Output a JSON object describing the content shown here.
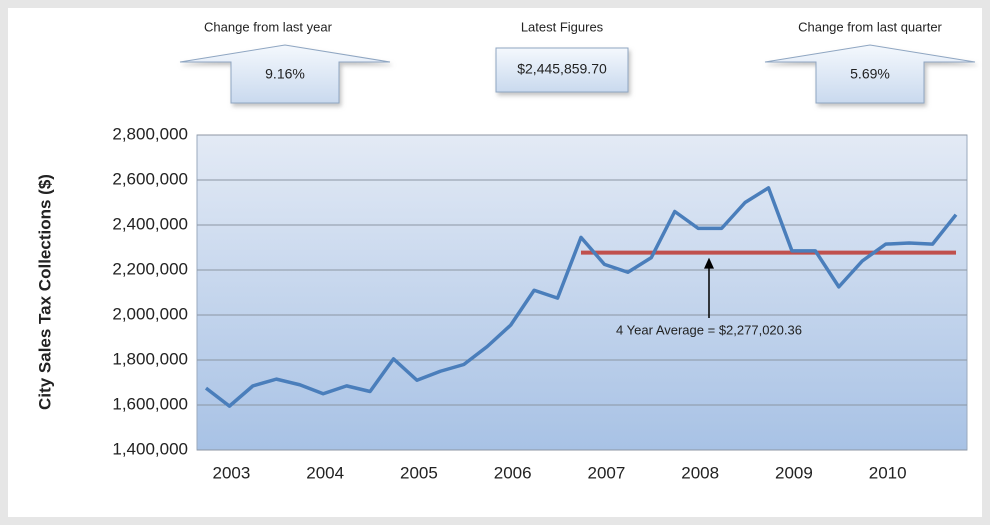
{
  "chart_data": {
    "type": "line",
    "ylabel": "City Sales Tax Collections ($)",
    "kpis": [
      {
        "title": "Change from last year",
        "value_label": "9.16%",
        "shape": "up-arrow"
      },
      {
        "title": "Latest Figures",
        "value_label": "$2,445,859.70",
        "shape": "box"
      },
      {
        "title": "Change from last quarter",
        "value_label": "5.69%",
        "shape": "up-arrow"
      }
    ],
    "categories": [
      null,
      "2003",
      null,
      null,
      null,
      "2004",
      null,
      null,
      null,
      "2005",
      null,
      null,
      null,
      "2006",
      null,
      null,
      null,
      "2007",
      null,
      null,
      null,
      "2008",
      null,
      null,
      null,
      "2009",
      null,
      null,
      null,
      "2010",
      null,
      null,
      null
    ],
    "series": [
      {
        "color": "#4a7ebb",
        "values": [
          1675000,
          1595000,
          1685000,
          1715000,
          1690000,
          1650000,
          1685000,
          1660000,
          1805000,
          1710000,
          1750000,
          1780000,
          1860000,
          1955000,
          2110000,
          2075000,
          2345000,
          2225000,
          2190000,
          2255000,
          2460000,
          2385000,
          2385000,
          2500000,
          2565000,
          2285000,
          2285000,
          2125000,
          2240000,
          2315000,
          2320000,
          2315000,
          2445859.7
        ]
      },
      {
        "color": "#c0504d",
        "values": [
          null,
          null,
          null,
          null,
          null,
          null,
          null,
          null,
          null,
          null,
          null,
          null,
          null,
          null,
          null,
          null,
          2277020.36,
          2277020.36,
          2277020.36,
          2277020.36,
          2277020.36,
          2277020.36,
          2277020.36,
          2277020.36,
          2277020.36,
          2277020.36,
          2277020.36,
          2277020.36,
          2277020.36,
          2277020.36,
          2277020.36,
          2277020.36,
          2277020.36
        ]
      }
    ],
    "annotation": "4 Year Average = $2,277,020.36",
    "ylim": [
      1400000,
      2800000
    ],
    "yticks": [
      {
        "value": 1400000,
        "label": "1,400,000"
      },
      {
        "value": 1600000,
        "label": "1,600,000"
      },
      {
        "value": 1800000,
        "label": "1,800,000"
      },
      {
        "value": 2000000,
        "label": "2,000,000"
      },
      {
        "value": 2200000,
        "label": "2,200,000"
      },
      {
        "value": 2400000,
        "label": "2,400,000"
      },
      {
        "value": 2600000,
        "label": "2,600,000"
      },
      {
        "value": 2800000,
        "label": "2,800,000"
      }
    ],
    "grid": true
  }
}
